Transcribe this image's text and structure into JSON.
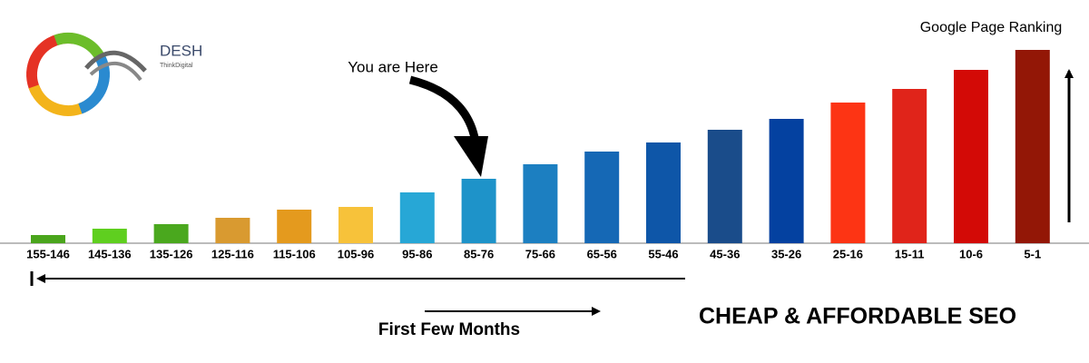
{
  "chart_data": {
    "type": "bar",
    "categories": [
      "155-146",
      "145-136",
      "135-126",
      "125-116",
      "115-106",
      "105-96",
      "95-86",
      "85-76",
      "75-66",
      "65-56",
      "55-46",
      "45-36",
      "35-26",
      "25-16",
      "15-11",
      "10-6",
      "5-1"
    ],
    "values": [
      9,
      16,
      21,
      28,
      37,
      40,
      56,
      71,
      87,
      101,
      111,
      125,
      137,
      155,
      170,
      191,
      213
    ],
    "colors": [
      "#4aa51c",
      "#5fcf1f",
      "#4aa81e",
      "#d99a30",
      "#e49a1e",
      "#f7c23a",
      "#27a7d6",
      "#1e93c9",
      "#1c7fc1",
      "#1568b5",
      "#0e56a8",
      "#1a4c8a",
      "#0441a0",
      "#fd3414",
      "#e0241a",
      "#d30a06",
      "#931706"
    ],
    "ylim": [
      0,
      213
    ],
    "y_label": "Google Page Ranking",
    "pointer_label": "You are Here",
    "timeline_label": "First Few Months",
    "headline": "CHEAP & AFFORDABLE SEO"
  },
  "logo": {
    "name": "DESH",
    "tagline": "ThinkDigital"
  }
}
